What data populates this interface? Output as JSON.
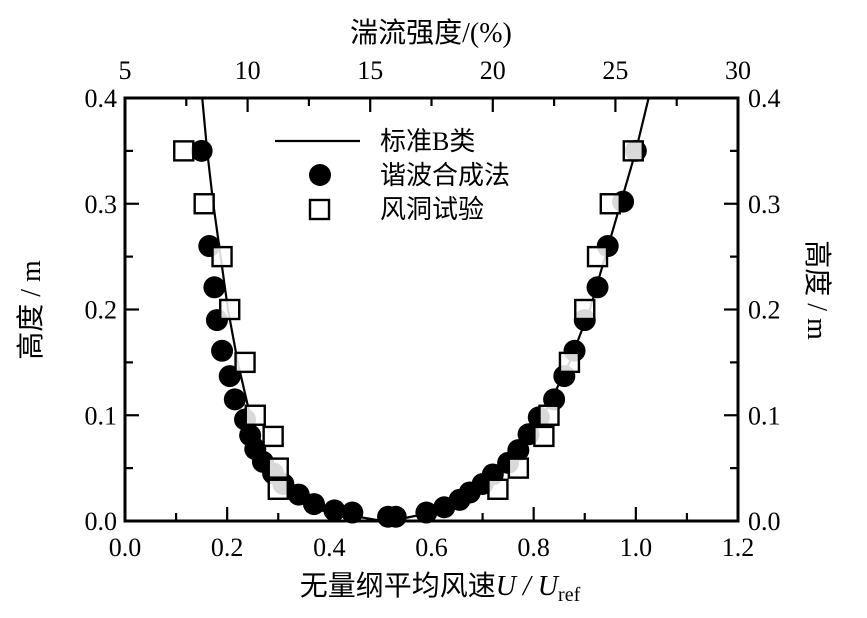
{
  "chart_data": {
    "type": "scatter",
    "title": "",
    "xlabel": "无量纲平均风速 U / U_ref",
    "xlabel_parts": {
      "prefix": "无量纲平均风速",
      "italic1": "U",
      "sep": " / ",
      "italic2": "U",
      "sub": "ref"
    },
    "ylabel_left": "高度 / m",
    "ylabel_right": "高度 / m",
    "x2label": "湍流强度/(%)",
    "xlim": [
      0.0,
      1.2
    ],
    "ylim": [
      0.0,
      0.4
    ],
    "x2lim": [
      5,
      30
    ],
    "xticks": [
      "0.0",
      "0.2",
      "0.4",
      "0.6",
      "0.8",
      "1.0",
      "1.2"
    ],
    "yticks": [
      "0.0",
      "0.1",
      "0.2",
      "0.3",
      "0.4"
    ],
    "x2ticks": [
      "5",
      "10",
      "15",
      "20",
      "25",
      "30"
    ],
    "grid": false,
    "legend_position": "upper center",
    "series": [
      {
        "name": "标准B类",
        "kind": "line",
        "note": "Two power-law curves: mean-velocity profile (right, bottom axis) and turbulence-intensity profile (left, top axis)",
        "points_mean_velocity": [
          [
            0.52,
            0.0
          ],
          [
            0.62,
            0.01
          ],
          [
            0.7,
            0.03
          ],
          [
            0.76,
            0.06
          ],
          [
            0.82,
            0.1
          ],
          [
            0.87,
            0.15
          ],
          [
            0.91,
            0.2
          ],
          [
            0.94,
            0.25
          ],
          [
            0.97,
            0.3
          ],
          [
            1.0,
            0.35
          ],
          [
            1.025,
            0.4
          ]
        ],
        "points_turbulence_intensity": [
          [
            15.5,
            0.0
          ],
          [
            13.0,
            0.01
          ],
          [
            11.6,
            0.03
          ],
          [
            10.8,
            0.06
          ],
          [
            10.1,
            0.1
          ],
          [
            9.6,
            0.15
          ],
          [
            9.2,
            0.2
          ],
          [
            8.9,
            0.25
          ],
          [
            8.6,
            0.3
          ],
          [
            8.35,
            0.35
          ],
          [
            8.15,
            0.4
          ]
        ]
      },
      {
        "name": "谐波合成法",
        "kind": "marker-filled-circle",
        "points": [
          [
            0.15,
            0.35
          ],
          [
            0.165,
            0.26
          ],
          [
            0.175,
            0.221
          ],
          [
            0.18,
            0.19
          ],
          [
            0.19,
            0.161
          ],
          [
            0.205,
            0.137
          ],
          [
            0.215,
            0.115
          ],
          [
            0.235,
            0.096
          ],
          [
            0.245,
            0.081
          ],
          [
            0.255,
            0.068
          ],
          [
            0.27,
            0.056
          ],
          [
            0.29,
            0.045
          ],
          [
            0.31,
            0.035
          ],
          [
            0.34,
            0.025
          ],
          [
            0.37,
            0.016
          ],
          [
            0.41,
            0.01
          ],
          [
            0.445,
            0.008
          ],
          [
            0.515,
            0.004
          ],
          [
            0.53,
            0.004
          ],
          [
            0.59,
            0.008
          ],
          [
            0.625,
            0.013
          ],
          [
            0.655,
            0.02
          ],
          [
            0.675,
            0.027
          ],
          [
            0.7,
            0.035
          ],
          [
            0.72,
            0.044
          ],
          [
            0.75,
            0.055
          ],
          [
            0.77,
            0.067
          ],
          [
            0.79,
            0.082
          ],
          [
            0.81,
            0.098
          ],
          [
            0.84,
            0.115
          ],
          [
            0.86,
            0.137
          ],
          [
            0.88,
            0.161
          ],
          [
            0.9,
            0.19
          ],
          [
            0.925,
            0.221
          ],
          [
            0.945,
            0.26
          ],
          [
            0.975,
            0.302
          ],
          [
            1.0,
            0.35
          ]
        ]
      },
      {
        "name": "风洞试验",
        "kind": "marker-open-square",
        "points": [
          [
            0.115,
            0.35
          ],
          [
            0.155,
            0.3
          ],
          [
            0.19,
            0.25
          ],
          [
            0.205,
            0.2
          ],
          [
            0.235,
            0.15
          ],
          [
            0.255,
            0.1
          ],
          [
            0.29,
            0.08
          ],
          [
            0.3,
            0.05
          ],
          [
            0.3,
            0.03
          ],
          [
            0.73,
            0.03
          ],
          [
            0.77,
            0.05
          ],
          [
            0.82,
            0.08
          ],
          [
            0.83,
            0.1
          ],
          [
            0.87,
            0.15
          ],
          [
            0.9,
            0.2
          ],
          [
            0.925,
            0.25
          ],
          [
            0.95,
            0.3
          ],
          [
            0.995,
            0.35
          ]
        ]
      }
    ]
  },
  "legend": {
    "items": [
      {
        "label": "标准B类",
        "symbol": "line"
      },
      {
        "label": "谐波合成法",
        "symbol": "filled-circle"
      },
      {
        "label": "风洞试验",
        "symbol": "open-square"
      }
    ]
  },
  "colors": {
    "ink": "#000000",
    "background": "#ffffff"
  }
}
